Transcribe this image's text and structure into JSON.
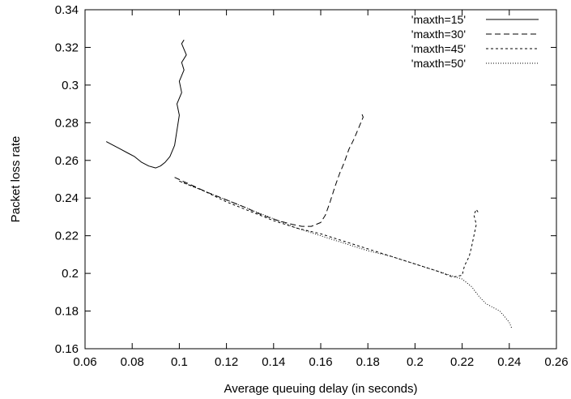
{
  "chart_data": {
    "type": "line",
    "title": "",
    "xlabel": "Average queuing delay (in seconds)",
    "ylabel": "Packet loss rate",
    "xlim": [
      0.06,
      0.26
    ],
    "ylim": [
      0.16,
      0.34
    ],
    "xticks": [
      "0.06",
      "0.08",
      "0.1",
      "0.12",
      "0.14",
      "0.16",
      "0.18",
      "0.2",
      "0.22",
      "0.24",
      "0.26"
    ],
    "yticks": [
      "0.16",
      "0.18",
      "0.2",
      "0.22",
      "0.24",
      "0.26",
      "0.28",
      "0.3",
      "0.32",
      "0.34"
    ],
    "grid": false,
    "legend_position": "top-right",
    "series": [
      {
        "name": "'maxth=15'",
        "dash": "solid",
        "x": [
          0.069,
          0.072,
          0.075,
          0.078,
          0.081,
          0.084,
          0.087,
          0.09,
          0.092,
          0.094,
          0.096,
          0.098,
          0.099,
          0.1,
          0.099,
          0.101,
          0.1,
          0.102,
          0.101,
          0.103,
          0.102,
          0.101,
          0.102
        ],
        "y": [
          0.27,
          0.268,
          0.266,
          0.264,
          0.262,
          0.259,
          0.257,
          0.256,
          0.257,
          0.259,
          0.262,
          0.268,
          0.276,
          0.284,
          0.29,
          0.296,
          0.302,
          0.308,
          0.312,
          0.316,
          0.319,
          0.322,
          0.324
        ]
      },
      {
        "name": "'maxth=30'",
        "dash": "long-dash",
        "x": [
          0.098,
          0.105,
          0.112,
          0.12,
          0.128,
          0.135,
          0.142,
          0.148,
          0.152,
          0.156,
          0.16,
          0.162,
          0.164,
          0.166,
          0.168,
          0.17,
          0.172,
          0.174,
          0.176,
          0.178,
          0.177
        ],
        "y": [
          0.251,
          0.247,
          0.243,
          0.239,
          0.235,
          0.231,
          0.228,
          0.226,
          0.225,
          0.225,
          0.227,
          0.231,
          0.238,
          0.246,
          0.253,
          0.259,
          0.266,
          0.271,
          0.277,
          0.283,
          0.286
        ]
      },
      {
        "name": "'maxth=45'",
        "dash": "short-dash",
        "x": [
          0.1,
          0.11,
          0.12,
          0.13,
          0.14,
          0.15,
          0.16,
          0.17,
          0.18,
          0.19,
          0.2,
          0.21,
          0.216,
          0.22,
          0.221,
          0.223,
          0.224,
          0.225,
          0.226,
          0.225,
          0.226,
          0.227
        ],
        "y": [
          0.249,
          0.244,
          0.238,
          0.233,
          0.228,
          0.224,
          0.221,
          0.217,
          0.213,
          0.209,
          0.205,
          0.201,
          0.198,
          0.199,
          0.204,
          0.209,
          0.214,
          0.22,
          0.226,
          0.231,
          0.234,
          0.232
        ]
      },
      {
        "name": "'maxth=50'",
        "dash": "dotted",
        "x": [
          0.1,
          0.11,
          0.12,
          0.13,
          0.14,
          0.15,
          0.16,
          0.17,
          0.18,
          0.19,
          0.2,
          0.21,
          0.215,
          0.22,
          0.224,
          0.227,
          0.23,
          0.233,
          0.236,
          0.238,
          0.24,
          0.241
        ],
        "y": [
          0.249,
          0.244,
          0.239,
          0.234,
          0.229,
          0.224,
          0.22,
          0.216,
          0.212,
          0.209,
          0.205,
          0.201,
          0.199,
          0.197,
          0.193,
          0.188,
          0.184,
          0.182,
          0.18,
          0.177,
          0.174,
          0.171
        ]
      }
    ]
  }
}
